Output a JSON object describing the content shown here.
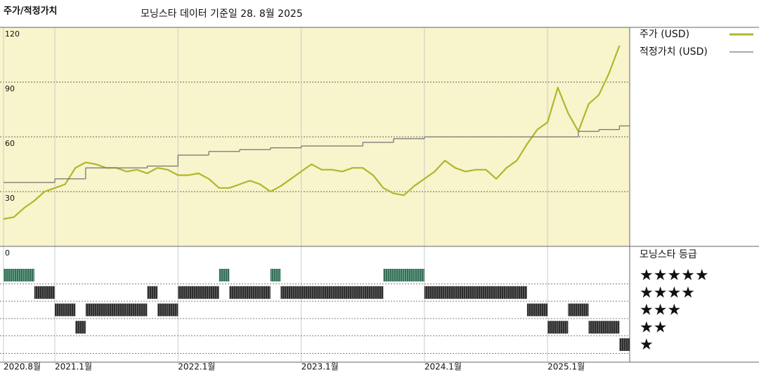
{
  "chart_data": {
    "type": "line",
    "title": "주가/적정가치",
    "subtitle": "모닝스타 데이터 기준일 28. 8월 2025",
    "x": [
      "2020-08",
      "2020-09",
      "2020-10",
      "2020-11",
      "2020-12",
      "2021-01",
      "2021-02",
      "2021-03",
      "2021-04",
      "2021-05",
      "2021-06",
      "2021-07",
      "2021-08",
      "2021-09",
      "2021-10",
      "2021-11",
      "2021-12",
      "2022-01",
      "2022-02",
      "2022-03",
      "2022-04",
      "2022-05",
      "2022-06",
      "2022-07",
      "2022-08",
      "2022-09",
      "2022-10",
      "2022-11",
      "2022-12",
      "2023-01",
      "2023-02",
      "2023-03",
      "2023-04",
      "2023-05",
      "2023-06",
      "2023-07",
      "2023-08",
      "2023-09",
      "2023-10",
      "2023-11",
      "2023-12",
      "2024-01",
      "2024-02",
      "2024-03",
      "2024-04",
      "2024-05",
      "2024-06",
      "2024-07",
      "2024-08",
      "2024-09",
      "2024-10",
      "2024-11",
      "2024-12",
      "2025-01",
      "2025-02",
      "2025-03",
      "2025-04",
      "2025-05",
      "2025-06",
      "2025-07",
      "2025-08"
    ],
    "series": [
      {
        "name": "주가 (USD)",
        "color": "#b3b52a",
        "style": "line",
        "values": [
          15,
          16,
          21,
          25,
          30,
          32,
          34,
          43,
          46,
          45,
          43,
          43,
          41,
          42,
          40,
          43,
          42,
          39,
          39,
          40,
          37,
          32,
          32,
          34,
          36,
          34,
          30,
          33,
          37,
          41,
          45,
          42,
          42,
          41,
          43,
          43,
          39,
          32,
          29,
          28,
          33,
          37,
          41,
          47,
          43,
          41,
          42,
          42,
          37,
          43,
          47,
          56,
          64,
          68,
          87,
          73,
          63,
          78,
          83,
          95,
          110
        ]
      },
      {
        "name": "적정가치 (USD)",
        "color": "#777777",
        "style": "step",
        "values": [
          35,
          35,
          35,
          35,
          35,
          37,
          37,
          37,
          43,
          43,
          43,
          43,
          43,
          43,
          44,
          44,
          44,
          50,
          50,
          50,
          52,
          52,
          52,
          53,
          53,
          53,
          54,
          54,
          54,
          55,
          55,
          55,
          55,
          55,
          55,
          57,
          57,
          57,
          59,
          59,
          59,
          60,
          60,
          60,
          60,
          60,
          60,
          60,
          60,
          60,
          60,
          60,
          60,
          60,
          60,
          60,
          63,
          63,
          64,
          64,
          66
        ]
      }
    ],
    "xlim": [
      "2020-08",
      "2025-09"
    ],
    "xticks": [
      {
        "value": "2020-08",
        "label": "2020.8월"
      },
      {
        "value": "2021-01",
        "label": "2021.1월"
      },
      {
        "value": "2022-01",
        "label": "2022.1월"
      },
      {
        "value": "2023-01",
        "label": "2023.1월"
      },
      {
        "value": "2024-01",
        "label": "2024.1월"
      },
      {
        "value": "2025-01",
        "label": "2025.1월"
      }
    ],
    "ylim": [
      0,
      120
    ],
    "yticks": [
      0,
      30,
      60,
      90,
      120
    ],
    "grid": true,
    "legend": "right",
    "rating": {
      "title": "모닝스타 등급",
      "levels": [
        5,
        4,
        3,
        2,
        1
      ],
      "labels": [
        "★★★★★",
        "★★★★",
        "★★★",
        "★★",
        "★"
      ],
      "colors": {
        "top": "#3f8a6c",
        "other": "#333333"
      },
      "values": [
        5,
        5,
        5,
        4,
        4,
        3,
        3,
        2,
        3,
        3,
        3,
        3,
        3,
        3,
        4,
        3,
        3,
        4,
        4,
        4,
        4,
        5,
        4,
        4,
        4,
        4,
        5,
        4,
        4,
        4,
        4,
        4,
        4,
        4,
        4,
        4,
        4,
        5,
        5,
        5,
        5,
        4,
        4,
        4,
        4,
        4,
        4,
        4,
        4,
        4,
        4,
        3,
        3,
        2,
        2,
        3,
        3,
        2,
        2,
        2,
        1
      ]
    }
  }
}
